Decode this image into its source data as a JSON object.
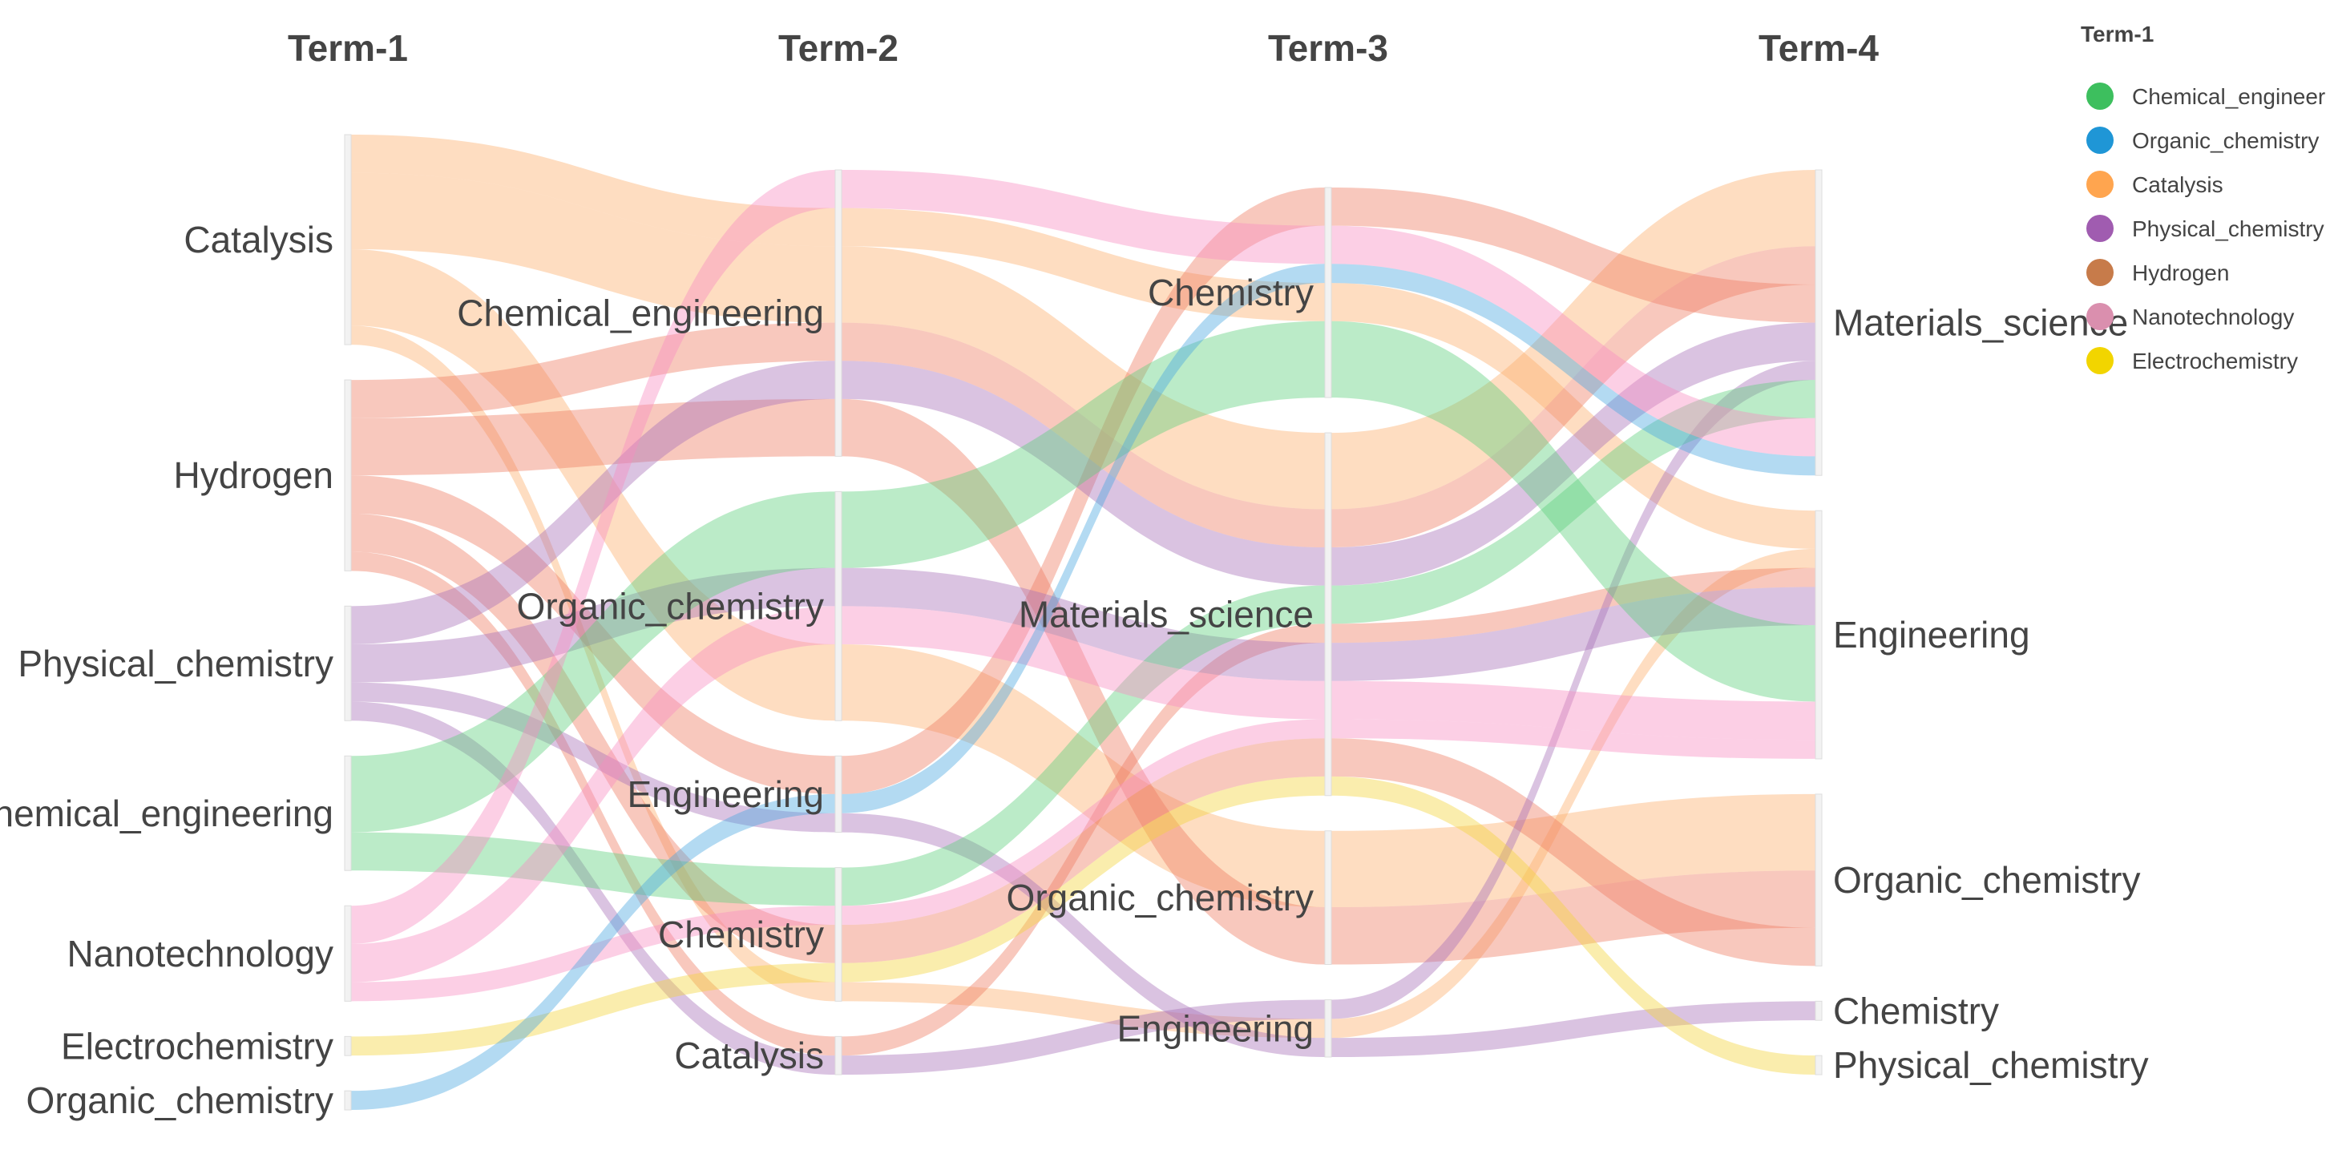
{
  "chart_data": {
    "type": "alluvial",
    "axes": [
      "Term-1",
      "Term-2",
      "Term-3",
      "Term-4"
    ],
    "legend": {
      "title": "Term-1",
      "placement": "top-right",
      "entries": [
        {
          "name": "Chemical_engineering",
          "color": "#3dbf5e"
        },
        {
          "name": "Organic_chemistry",
          "color": "#1f96d6"
        },
        {
          "name": "Catalysis",
          "color": "#ffa54f"
        },
        {
          "name": "Physical_chemistry",
          "color": "#a05cb0"
        },
        {
          "name": "Hydrogen",
          "color": "#c77b4a"
        },
        {
          "name": "Nanotechnology",
          "color": "#da8fae"
        },
        {
          "name": "Electrochemistry",
          "color": "#f2d500"
        }
      ]
    },
    "flow_colors": {
      "Chemical_engineering": "#5ccf7b",
      "Organic_chemistry": "#4aa6e0",
      "Catalysis": "#fcae6b",
      "Physical_chemistry": "#a870b8",
      "Hydrogen": "#ee7d62",
      "Nanotechnology": "#f78cc0",
      "Electrochemistry": "#f4d53c"
    },
    "nodes": [
      [
        "Catalysis",
        "Hydrogen",
        "Physical_chemistry",
        "Chemical_engineering",
        "Nanotechnology",
        "Electrochemistry",
        "Organic_chemistry"
      ],
      [
        "Chemical_engineering",
        "Organic_chemistry",
        "Engineering",
        "Chemistry",
        "Catalysis"
      ],
      [
        "Chemistry",
        "Materials_science",
        "Organic_chemistry",
        "Engineering"
      ],
      [
        "Materials_science",
        "Engineering",
        "Organic_chemistry",
        "Chemistry",
        "Physical_chemistry"
      ]
    ],
    "paths": [
      {
        "group": "Catalysis",
        "nodes": [
          "Catalysis",
          "Chemical_engineering",
          "Chemistry",
          "Engineering"
        ],
        "value": 2
      },
      {
        "group": "Catalysis",
        "nodes": [
          "Catalysis",
          "Chemical_engineering",
          "Materials_science",
          "Materials_science"
        ],
        "value": 4
      },
      {
        "group": "Catalysis",
        "nodes": [
          "Catalysis",
          "Organic_chemistry",
          "Organic_chemistry",
          "Organic_chemistry"
        ],
        "value": 4
      },
      {
        "group": "Catalysis",
        "nodes": [
          "Catalysis",
          "Chemistry",
          "Engineering",
          "Engineering"
        ],
        "value": 1
      },
      {
        "group": "Hydrogen",
        "nodes": [
          "Hydrogen",
          "Chemical_engineering",
          "Materials_science",
          "Materials_science"
        ],
        "value": 2
      },
      {
        "group": "Hydrogen",
        "nodes": [
          "Hydrogen",
          "Chemical_engineering",
          "Organic_chemistry",
          "Organic_chemistry"
        ],
        "value": 3
      },
      {
        "group": "Hydrogen",
        "nodes": [
          "Hydrogen",
          "Engineering",
          "Chemistry",
          "Materials_science"
        ],
        "value": 2
      },
      {
        "group": "Hydrogen",
        "nodes": [
          "Hydrogen",
          "Chemistry",
          "Materials_science",
          "Organic_chemistry"
        ],
        "value": 2
      },
      {
        "group": "Hydrogen",
        "nodes": [
          "Hydrogen",
          "Catalysis",
          "Materials_science",
          "Engineering"
        ],
        "value": 1
      },
      {
        "group": "Physical_chemistry",
        "nodes": [
          "Physical_chemistry",
          "Chemical_engineering",
          "Materials_science",
          "Materials_science"
        ],
        "value": 2
      },
      {
        "group": "Physical_chemistry",
        "nodes": [
          "Physical_chemistry",
          "Organic_chemistry",
          "Materials_science",
          "Engineering"
        ],
        "value": 2
      },
      {
        "group": "Physical_chemistry",
        "nodes": [
          "Physical_chemistry",
          "Engineering",
          "Engineering",
          "Chemistry"
        ],
        "value": 1
      },
      {
        "group": "Physical_chemistry",
        "nodes": [
          "Physical_chemistry",
          "Catalysis",
          "Engineering",
          "Materials_science"
        ],
        "value": 1
      },
      {
        "group": "Chemical_engineering",
        "nodes": [
          "Chemical_engineering",
          "Organic_chemistry",
          "Chemistry",
          "Engineering"
        ],
        "value": 4
      },
      {
        "group": "Chemical_engineering",
        "nodes": [
          "Chemical_engineering",
          "Chemistry",
          "Materials_science",
          "Materials_science"
        ],
        "value": 2
      },
      {
        "group": "Nanotechnology",
        "nodes": [
          "Nanotechnology",
          "Chemical_engineering",
          "Chemistry",
          "Materials_science"
        ],
        "value": 2
      },
      {
        "group": "Nanotechnology",
        "nodes": [
          "Nanotechnology",
          "Organic_chemistry",
          "Materials_science",
          "Engineering"
        ],
        "value": 2
      },
      {
        "group": "Nanotechnology",
        "nodes": [
          "Nanotechnology",
          "Chemistry",
          "Materials_science",
          "Engineering"
        ],
        "value": 1
      },
      {
        "group": "Electrochemistry",
        "nodes": [
          "Electrochemistry",
          "Chemistry",
          "Materials_science",
          "Physical_chemistry"
        ],
        "value": 1
      },
      {
        "group": "Organic_chemistry",
        "nodes": [
          "Organic_chemistry",
          "Engineering",
          "Chemistry",
          "Materials_science"
        ],
        "value": 1
      }
    ]
  }
}
